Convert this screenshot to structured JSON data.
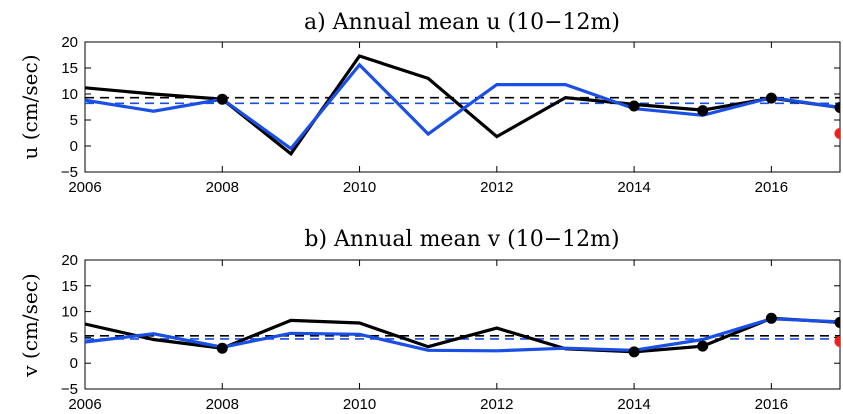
{
  "chart_data": [
    {
      "type": "line",
      "title": "a) Annual mean u (10−12m)",
      "ylabel": "u (cm/sec)",
      "xlim": [
        2006,
        2017
      ],
      "ylim": [
        -5,
        20
      ],
      "xticks": [
        2006,
        2008,
        2010,
        2012,
        2014,
        2016
      ],
      "xtick_labels": [
        "2006",
        "2008",
        "2010",
        "2012",
        "2014",
        "2016"
      ],
      "yticks": [
        -5,
        0,
        5,
        10,
        15,
        20
      ],
      "ytick_labels": [
        "−5",
        "0",
        "5",
        "10",
        "15",
        "20"
      ],
      "grid": false,
      "series": [
        {
          "color": "#000000",
          "x": [
            2006,
            2007,
            2008,
            2009,
            2010,
            2011,
            2012,
            2013,
            2014,
            2015,
            2016,
            2017
          ],
          "values": [
            11.2,
            10.0,
            9.0,
            -1.5,
            17.3,
            13.0,
            1.8,
            9.3,
            8.0,
            6.9,
            9.2,
            7.4
          ]
        },
        {
          "color": "#1a4fe6",
          "x": [
            2006,
            2007,
            2008,
            2009,
            2010,
            2011,
            2012,
            2013,
            2014,
            2015,
            2016,
            2017
          ],
          "values": [
            8.8,
            6.7,
            9.0,
            -0.5,
            15.6,
            2.3,
            11.8,
            11.8,
            7.2,
            5.9,
            9.3,
            7.4
          ]
        }
      ],
      "reference_lines": [
        {
          "color": "#000000",
          "style": "dashed",
          "value": 9.3
        },
        {
          "color": "#1a4fe6",
          "style": "dashed",
          "value": 8.2
        }
      ],
      "markers": [
        {
          "color": "#000000",
          "x": 2008,
          "value": 9.0
        },
        {
          "color": "#000000",
          "x": 2014,
          "value": 7.7
        },
        {
          "color": "#000000",
          "x": 2015,
          "value": 6.8
        },
        {
          "color": "#000000",
          "x": 2016,
          "value": 9.2
        },
        {
          "color": "#000000",
          "x": 2017,
          "value": 7.4
        },
        {
          "color": "#ff1a1a",
          "x": 2017,
          "value": 2.4
        }
      ]
    },
    {
      "type": "line",
      "title": "b) Annual mean v (10−12m)",
      "ylabel": "v (cm/sec)",
      "xlim": [
        2006,
        2017
      ],
      "ylim": [
        -5,
        20
      ],
      "xticks": [
        2006,
        2008,
        2010,
        2012,
        2014,
        2016
      ],
      "xtick_labels": [
        "2006",
        "2008",
        "2010",
        "2012",
        "2014",
        "2016"
      ],
      "yticks": [
        -5,
        0,
        5,
        10,
        15,
        20
      ],
      "ytick_labels": [
        "−5",
        "0",
        "5",
        "10",
        "15",
        "20"
      ],
      "grid": false,
      "series": [
        {
          "color": "#000000",
          "x": [
            2006,
            2007,
            2008,
            2009,
            2010,
            2011,
            2012,
            2013,
            2014,
            2015,
            2016,
            2017
          ],
          "values": [
            7.6,
            4.6,
            2.9,
            8.3,
            7.8,
            3.2,
            6.8,
            2.8,
            2.2,
            3.3,
            8.7,
            7.9
          ]
        },
        {
          "color": "#1a4fe6",
          "x": [
            2006,
            2007,
            2008,
            2009,
            2010,
            2011,
            2012,
            2013,
            2014,
            2015,
            2016,
            2017
          ],
          "values": [
            4.1,
            5.7,
            3.1,
            5.8,
            5.6,
            2.5,
            2.4,
            2.9,
            2.5,
            4.6,
            8.6,
            8.0
          ]
        }
      ],
      "reference_lines": [
        {
          "color": "#000000",
          "style": "dashed",
          "value": 5.3
        },
        {
          "color": "#1a4fe6",
          "style": "dashed",
          "value": 4.7
        }
      ],
      "markers": [
        {
          "color": "#000000",
          "x": 2008,
          "value": 2.9
        },
        {
          "color": "#000000",
          "x": 2014,
          "value": 2.2
        },
        {
          "color": "#000000",
          "x": 2015,
          "value": 3.3
        },
        {
          "color": "#000000",
          "x": 2016,
          "value": 8.7
        },
        {
          "color": "#000000",
          "x": 2017,
          "value": 7.9
        },
        {
          "color": "#ff1a1a",
          "x": 2017,
          "value": 4.2
        }
      ]
    }
  ]
}
